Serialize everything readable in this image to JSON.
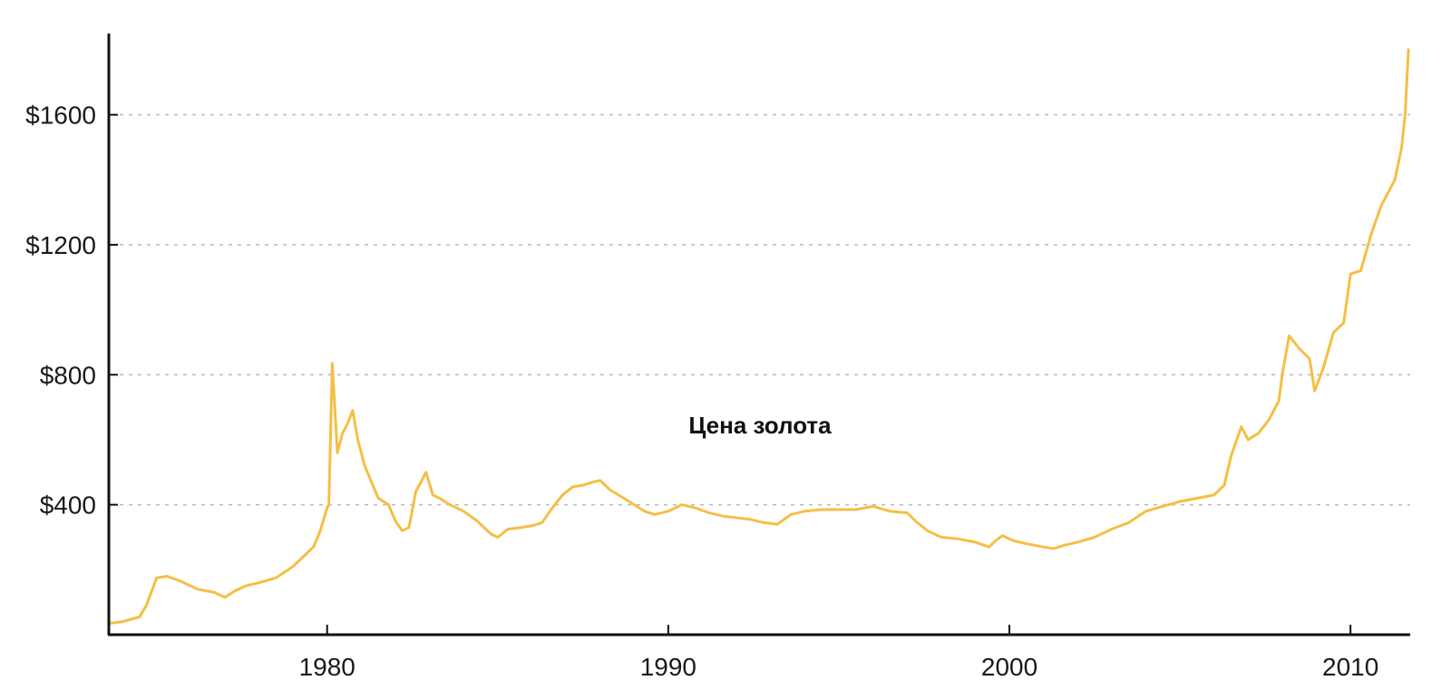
{
  "chart_data": {
    "type": "line",
    "title": "Цена золота",
    "xlabel": "",
    "ylabel": "",
    "xlim": [
      1973.6,
      2011.75
    ],
    "ylim": [
      0,
      1850
    ],
    "x_ticks": [
      1980,
      1990,
      2000,
      2010
    ],
    "x_tick_labels": [
      "1980",
      "1990",
      "2000",
      "2010"
    ],
    "y_ticks": [
      400,
      800,
      1200,
      1600
    ],
    "y_tick_labels": [
      "$400",
      "$800",
      "$1200",
      "$1600"
    ],
    "grid": "horizontal dashed",
    "legend": "none",
    "colors": {
      "line": "#F5BF45",
      "axis": "#111111",
      "grid": "#bdbdbd"
    },
    "series": [
      {
        "x": [
          1973.6,
          1974.0,
          1974.5,
          1974.7,
          1975.0,
          1975.3,
          1975.7,
          1976.2,
          1976.7,
          1977.0,
          1977.3,
          1977.6,
          1978.0,
          1978.5,
          1979.0,
          1979.3,
          1979.6,
          1979.8,
          1980.0,
          1980.05,
          1980.15,
          1980.3,
          1980.45,
          1980.6,
          1980.75,
          1980.9,
          1981.1,
          1981.3,
          1981.5,
          1981.8,
          1982.0,
          1982.2,
          1982.4,
          1982.6,
          1982.75,
          1982.9,
          1983.1,
          1983.3,
          1983.6,
          1984.0,
          1984.4,
          1984.8,
          1985.0,
          1985.3,
          1985.7,
          1986.0,
          1986.3,
          1986.6,
          1986.9,
          1987.2,
          1987.5,
          1987.8,
          1988.0,
          1988.3,
          1988.7,
          1989.0,
          1989.3,
          1989.6,
          1990.0,
          1990.4,
          1990.8,
          1991.2,
          1991.6,
          1992.0,
          1992.4,
          1992.8,
          1993.2,
          1993.6,
          1994.0,
          1994.5,
          1995.0,
          1995.5,
          1996.0,
          1996.5,
          1997.0,
          1997.3,
          1997.6,
          1998.0,
          1998.5,
          1999.0,
          1999.4,
          1999.6,
          1999.8,
          2000.1,
          2000.5,
          2001.0,
          2001.3,
          2001.6,
          2002.0,
          2002.5,
          2003.0,
          2003.5,
          2004.0,
          2004.5,
          2005.0,
          2005.5,
          2006.0,
          2006.3,
          2006.5,
          2006.8,
          2007.0,
          2007.3,
          2007.6,
          2007.9,
          2008.0,
          2008.2,
          2008.5,
          2008.8,
          2008.95,
          2009.2,
          2009.5,
          2009.8,
          2010.0,
          2010.3,
          2010.6,
          2010.9,
          2011.1,
          2011.3,
          2011.5,
          2011.6,
          2011.7
        ],
        "y": [
          35,
          40,
          55,
          90,
          175,
          180,
          165,
          140,
          130,
          115,
          135,
          150,
          160,
          175,
          210,
          240,
          270,
          320,
          390,
          400,
          835,
          560,
          620,
          650,
          690,
          600,
          520,
          470,
          420,
          400,
          350,
          320,
          330,
          440,
          470,
          500,
          430,
          420,
          400,
          380,
          350,
          310,
          300,
          325,
          330,
          335,
          345,
          390,
          430,
          455,
          460,
          470,
          475,
          445,
          420,
          400,
          380,
          370,
          380,
          400,
          390,
          375,
          365,
          360,
          355,
          345,
          340,
          370,
          380,
          385,
          385,
          385,
          395,
          380,
          375,
          345,
          320,
          300,
          295,
          285,
          270,
          290,
          305,
          290,
          280,
          270,
          265,
          275,
          285,
          300,
          325,
          345,
          380,
          395,
          410,
          420,
          430,
          460,
          550,
          640,
          600,
          620,
          660,
          720,
          800,
          920,
          880,
          850,
          750,
          820,
          930,
          960,
          1110,
          1120,
          1230,
          1320,
          1360,
          1400,
          1500,
          1600,
          1800
        ]
      }
    ]
  }
}
